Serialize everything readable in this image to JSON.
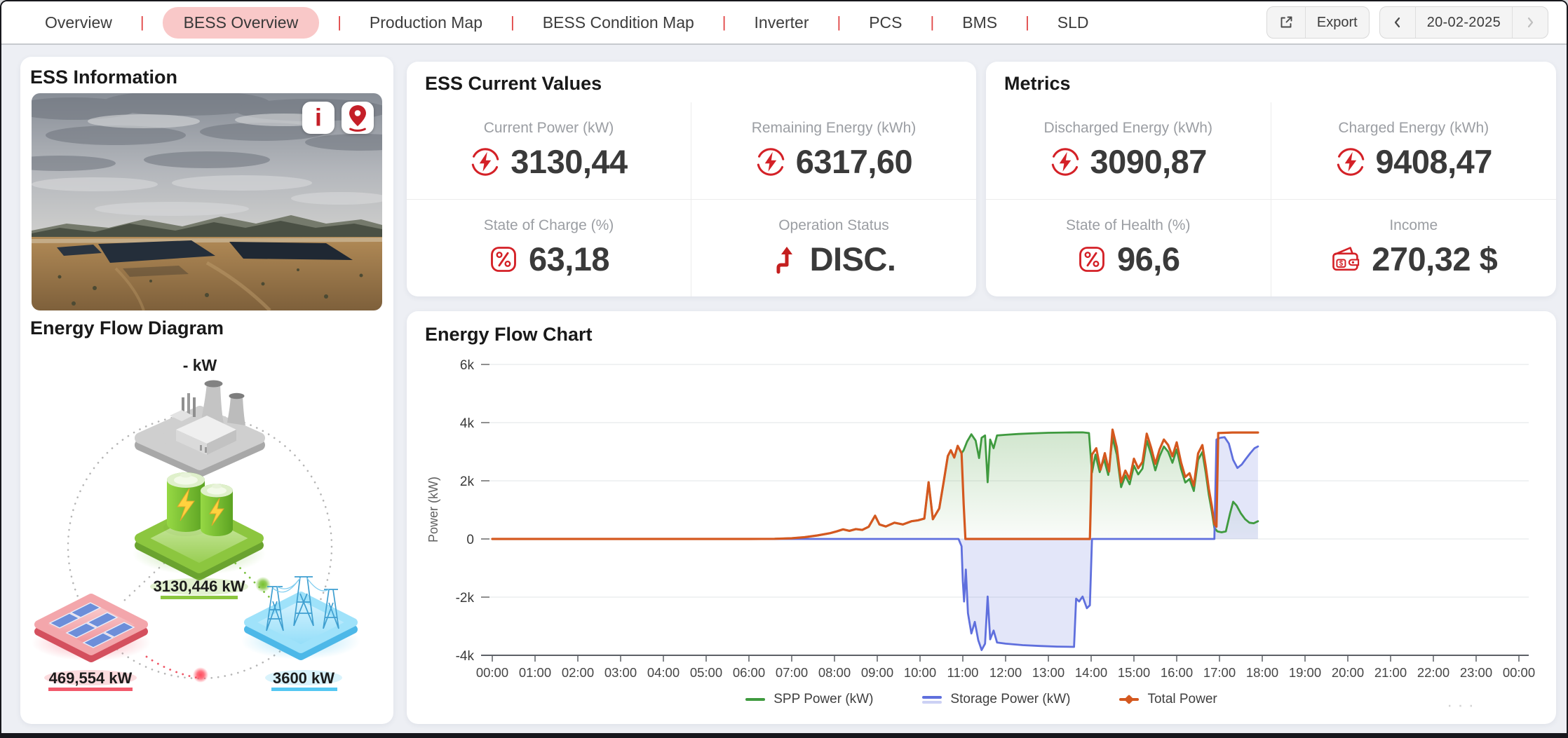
{
  "nav": {
    "separator": "|",
    "items": [
      {
        "label": "Overview",
        "active": false
      },
      {
        "label": "BESS Overview",
        "active": true
      },
      {
        "label": "Production Map",
        "active": false
      },
      {
        "label": "BESS Condition Map",
        "active": false
      },
      {
        "label": "Inverter",
        "active": false
      },
      {
        "label": "PCS",
        "active": false
      },
      {
        "label": "BMS",
        "active": false
      },
      {
        "label": "SLD",
        "active": false
      }
    ],
    "export_label": "Export",
    "date": "20-02-2025"
  },
  "ess_information": {
    "title": "ESS Information"
  },
  "energy_flow_diagram": {
    "title": "Energy Flow Diagram",
    "nodes": {
      "grid": {
        "label": "- kW"
      },
      "battery": {
        "label": "3130,446 kW",
        "color": "#8cc63f"
      },
      "solar": {
        "label": "469,554 kW",
        "color": "#f2596b"
      },
      "tower": {
        "label": "3600 kW",
        "color": "#54c7f2"
      }
    }
  },
  "ess_current_values": {
    "title": "ESS Current Values",
    "cells": [
      {
        "label": "Current Power (kW)",
        "value": "3130,44",
        "icon": "power-icon"
      },
      {
        "label": "Remaining Energy (kWh)",
        "value": "6317,60",
        "icon": "power-icon"
      },
      {
        "label": "State of Charge (%)",
        "value": "63,18",
        "icon": "percent-icon"
      },
      {
        "label": "Operation Status",
        "value": "DISC.",
        "icon": "arrow-up-icon"
      }
    ]
  },
  "metrics": {
    "title": "Metrics",
    "cells": [
      {
        "label": "Discharged Energy (kWh)",
        "value": "3090,87",
        "icon": "power-icon"
      },
      {
        "label": "Charged Energy (kWh)",
        "value": "9408,47",
        "icon": "power-icon"
      },
      {
        "label": "State of Health (%)",
        "value": "96,6",
        "icon": "percent-icon"
      },
      {
        "label": "Income",
        "value": "270,32 $",
        "icon": "wallet-icon"
      }
    ]
  },
  "accent_color": "#d42127",
  "chart_data": {
    "type": "area",
    "title": "Energy Flow Chart",
    "ylabel": "Power (kW)",
    "ylim": [
      -4000,
      6000
    ],
    "x_hours_range": [
      0,
      24
    ],
    "grid": true,
    "legend_position": "bottom",
    "more_dots": "···",
    "y_ticks": [
      {
        "label": "6k",
        "value": 6000
      },
      {
        "label": "4k",
        "value": 4000
      },
      {
        "label": "2k",
        "value": 2000
      },
      {
        "label": "0",
        "value": 0
      },
      {
        "label": "-2k",
        "value": -2000
      },
      {
        "label": "-4k",
        "value": -4000
      }
    ],
    "x_ticks": [
      "00:00",
      "01:00",
      "02:00",
      "03:00",
      "04:00",
      "05:00",
      "06:00",
      "07:00",
      "08:00",
      "09:00",
      "10:00",
      "11:00",
      "12:00",
      "13:00",
      "14:00",
      "15:00",
      "16:00",
      "17:00",
      "18:00",
      "19:00",
      "20:00",
      "21:00",
      "22:00",
      "23:00",
      "00:00"
    ],
    "legend": [
      {
        "label": "SPP Power (kW)",
        "color": "#3f9a3f",
        "marker": "line"
      },
      {
        "label": "Storage Power (kW)",
        "color": "#5f6fdd",
        "marker": "double-line"
      },
      {
        "label": "Total Power",
        "color": "#d4581f",
        "marker": "line-diamond"
      }
    ],
    "series": [
      {
        "name": "SPP Power (kW)",
        "color": "#3f9a3f",
        "width": 2.8,
        "fill": "gradient-green",
        "points": [
          [
            0,
            0
          ],
          [
            1,
            0
          ],
          [
            2,
            0
          ],
          [
            3,
            0
          ],
          [
            4,
            0
          ],
          [
            5,
            0
          ],
          [
            6,
            0
          ],
          [
            6.6,
            5
          ],
          [
            7,
            25
          ],
          [
            7.3,
            60
          ],
          [
            7.6,
            120
          ],
          [
            7.9,
            200
          ],
          [
            8.05,
            260
          ],
          [
            8.2,
            330
          ],
          [
            8.35,
            280
          ],
          [
            8.5,
            340
          ],
          [
            8.65,
            310
          ],
          [
            8.8,
            420
          ],
          [
            8.95,
            800
          ],
          [
            9.05,
            500
          ],
          [
            9.2,
            430
          ],
          [
            9.4,
            560
          ],
          [
            9.6,
            500
          ],
          [
            9.8,
            610
          ],
          [
            9.95,
            640
          ],
          [
            10.1,
            700
          ],
          [
            10.2,
            1950
          ],
          [
            10.3,
            680
          ],
          [
            10.45,
            1050
          ],
          [
            10.55,
            1950
          ],
          [
            10.65,
            2850
          ],
          [
            10.72,
            3050
          ],
          [
            10.8,
            2800
          ],
          [
            10.88,
            3200
          ],
          [
            10.97,
            2950
          ],
          [
            11.02,
            3050
          ],
          [
            11.1,
            3350
          ],
          [
            11.2,
            3600
          ],
          [
            11.3,
            3380
          ],
          [
            11.38,
            2780
          ],
          [
            11.44,
            3480
          ],
          [
            11.52,
            3560
          ],
          [
            11.58,
            1950
          ],
          [
            11.64,
            3420
          ],
          [
            11.72,
            3120
          ],
          [
            11.8,
            3560
          ],
          [
            12,
            3580
          ],
          [
            12.3,
            3610
          ],
          [
            12.6,
            3630
          ],
          [
            13,
            3650
          ],
          [
            13.4,
            3660
          ],
          [
            13.8,
            3665
          ],
          [
            13.95,
            3640
          ],
          [
            14.02,
            2280
          ],
          [
            14.1,
            2900
          ],
          [
            14.2,
            2300
          ],
          [
            14.3,
            2750
          ],
          [
            14.4,
            2200
          ],
          [
            14.5,
            3480
          ],
          [
            14.6,
            2900
          ],
          [
            14.7,
            1780
          ],
          [
            14.8,
            2180
          ],
          [
            14.9,
            1880
          ],
          [
            15,
            2520
          ],
          [
            15.1,
            2220
          ],
          [
            15.2,
            2420
          ],
          [
            15.3,
            3380
          ],
          [
            15.4,
            2920
          ],
          [
            15.5,
            2360
          ],
          [
            15.6,
            2840
          ],
          [
            15.7,
            3180
          ],
          [
            15.8,
            3000
          ],
          [
            15.9,
            2620
          ],
          [
            16,
            3080
          ],
          [
            16.1,
            2420
          ],
          [
            16.2,
            1940
          ],
          [
            16.3,
            2060
          ],
          [
            16.4,
            1650
          ],
          [
            16.5,
            2720
          ],
          [
            16.6,
            2990
          ],
          [
            16.68,
            2260
          ],
          [
            16.75,
            1520
          ],
          [
            16.82,
            960
          ],
          [
            16.88,
            380
          ],
          [
            16.95,
            260
          ],
          [
            17.05,
            230
          ],
          [
            17.15,
            260
          ],
          [
            17.25,
            900
          ],
          [
            17.32,
            1280
          ],
          [
            17.4,
            1150
          ],
          [
            17.5,
            880
          ],
          [
            17.6,
            680
          ],
          [
            17.7,
            560
          ],
          [
            17.8,
            540
          ],
          [
            17.9,
            610
          ]
        ]
      },
      {
        "name": "Storage Power (kW)",
        "color": "#5f6fdd",
        "width": 2.8,
        "fill": "rgba(116,130,224,0.20)",
        "points": [
          [
            0,
            0
          ],
          [
            2,
            0
          ],
          [
            4,
            0
          ],
          [
            6,
            0
          ],
          [
            8,
            0
          ],
          [
            9,
            0
          ],
          [
            10,
            0
          ],
          [
            10.9,
            0
          ],
          [
            10.97,
            -250
          ],
          [
            11,
            -1450
          ],
          [
            11.03,
            -2150
          ],
          [
            11.07,
            -1050
          ],
          [
            11.12,
            -2550
          ],
          [
            11.2,
            -3250
          ],
          [
            11.28,
            -2850
          ],
          [
            11.36,
            -3480
          ],
          [
            11.44,
            -3820
          ],
          [
            11.52,
            -3600
          ],
          [
            11.58,
            -1980
          ],
          [
            11.64,
            -3450
          ],
          [
            11.72,
            -3150
          ],
          [
            11.8,
            -3560
          ],
          [
            12,
            -3600
          ],
          [
            12.4,
            -3650
          ],
          [
            12.8,
            -3680
          ],
          [
            13.2,
            -3700
          ],
          [
            13.6,
            -3710
          ],
          [
            13.65,
            -2050
          ],
          [
            13.72,
            -2150
          ],
          [
            13.8,
            -1980
          ],
          [
            13.9,
            -2380
          ],
          [
            13.97,
            -2280
          ],
          [
            14.02,
            0
          ],
          [
            15,
            0
          ],
          [
            16,
            0
          ],
          [
            16.88,
            0
          ],
          [
            16.93,
            3420
          ],
          [
            17.02,
            3480
          ],
          [
            17.12,
            3500
          ],
          [
            17.22,
            3280
          ],
          [
            17.32,
            2720
          ],
          [
            17.42,
            2440
          ],
          [
            17.52,
            2560
          ],
          [
            17.62,
            2760
          ],
          [
            17.72,
            2950
          ],
          [
            17.82,
            3120
          ],
          [
            17.9,
            3180
          ]
        ]
      },
      {
        "name": "Total Power",
        "color": "#d4581f",
        "width": 3.2,
        "fill": "none",
        "points": [
          [
            0,
            0
          ],
          [
            1,
            0
          ],
          [
            2,
            0
          ],
          [
            3,
            0
          ],
          [
            4,
            0
          ],
          [
            5,
            0
          ],
          [
            6,
            0
          ],
          [
            6.6,
            5
          ],
          [
            7,
            25
          ],
          [
            7.3,
            60
          ],
          [
            7.6,
            120
          ],
          [
            7.9,
            200
          ],
          [
            8.05,
            260
          ],
          [
            8.2,
            330
          ],
          [
            8.35,
            280
          ],
          [
            8.5,
            340
          ],
          [
            8.65,
            310
          ],
          [
            8.8,
            420
          ],
          [
            8.95,
            800
          ],
          [
            9.05,
            500
          ],
          [
            9.2,
            430
          ],
          [
            9.4,
            560
          ],
          [
            9.6,
            500
          ],
          [
            9.8,
            610
          ],
          [
            9.95,
            640
          ],
          [
            10.1,
            700
          ],
          [
            10.2,
            1950
          ],
          [
            10.3,
            680
          ],
          [
            10.45,
            1050
          ],
          [
            10.55,
            1950
          ],
          [
            10.65,
            2850
          ],
          [
            10.72,
            3050
          ],
          [
            10.8,
            2800
          ],
          [
            10.88,
            3200
          ],
          [
            10.97,
            2950
          ],
          [
            11.02,
            1200
          ],
          [
            11.06,
            0
          ],
          [
            12,
            0
          ],
          [
            13,
            0
          ],
          [
            13.97,
            0
          ],
          [
            14.02,
            2900
          ],
          [
            14.12,
            3120
          ],
          [
            14.22,
            2380
          ],
          [
            14.32,
            2950
          ],
          [
            14.42,
            2320
          ],
          [
            14.5,
            3760
          ],
          [
            14.6,
            3150
          ],
          [
            14.7,
            1950
          ],
          [
            14.8,
            2350
          ],
          [
            14.9,
            2060
          ],
          [
            15,
            2760
          ],
          [
            15.1,
            2430
          ],
          [
            15.2,
            2650
          ],
          [
            15.3,
            3620
          ],
          [
            15.4,
            3150
          ],
          [
            15.5,
            2580
          ],
          [
            15.6,
            3080
          ],
          [
            15.7,
            3420
          ],
          [
            15.8,
            3230
          ],
          [
            15.9,
            2840
          ],
          [
            16,
            3320
          ],
          [
            16.1,
            2640
          ],
          [
            16.2,
            2130
          ],
          [
            16.3,
            2260
          ],
          [
            16.4,
            1830
          ],
          [
            16.5,
            2940
          ],
          [
            16.6,
            3230
          ],
          [
            16.68,
            2480
          ],
          [
            16.75,
            1720
          ],
          [
            16.82,
            1150
          ],
          [
            16.88,
            520
          ],
          [
            16.93,
            420
          ],
          [
            16.97,
            3640
          ],
          [
            17.3,
            3660
          ],
          [
            17.6,
            3660
          ],
          [
            17.9,
            3660
          ]
        ]
      }
    ]
  }
}
